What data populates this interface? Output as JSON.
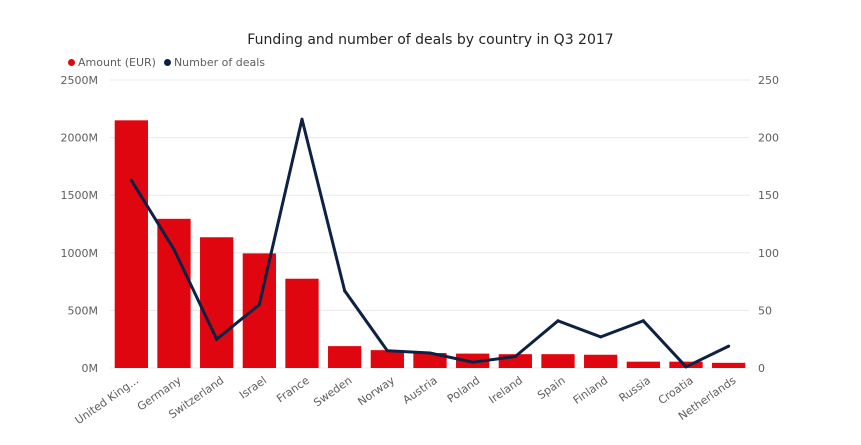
{
  "chart_data": {
    "type": "bar",
    "title": "Funding and number of deals by country in Q3 2017",
    "categories": [
      "United King...",
      "Germany",
      "Switzerland",
      "Israel",
      "France",
      "Sweden",
      "Norway",
      "Austria",
      "Poland",
      "Ireland",
      "Spain",
      "Finland",
      "Russia",
      "Croatia",
      "Netherlands"
    ],
    "series": [
      {
        "name": "Amount (EUR)",
        "type": "bar",
        "axis": "left",
        "color": "#e0060f",
        "values": [
          2150,
          1295,
          1135,
          995,
          775,
          190,
          155,
          130,
          125,
          120,
          120,
          115,
          55,
          55,
          45
        ]
      },
      {
        "name": "Number of deals",
        "type": "line",
        "axis": "right",
        "color": "#0d2145",
        "values": [
          163,
          103,
          25,
          55,
          216,
          67,
          15,
          13,
          5,
          10,
          41,
          27,
          41,
          1,
          19
        ]
      }
    ],
    "y_left": {
      "ticks": [
        0,
        500,
        1000,
        1500,
        2000,
        2500
      ],
      "tick_labels": [
        "0M",
        "500M",
        "1000M",
        "1500M",
        "2000M",
        "2500M"
      ],
      "ylim": [
        0,
        2500
      ]
    },
    "y_right": {
      "ticks": [
        0,
        50,
        100,
        150,
        200,
        250
      ],
      "tick_labels": [
        "0",
        "50",
        "100",
        "150",
        "200",
        "250"
      ],
      "ylim": [
        0,
        250
      ]
    },
    "grid": true,
    "legend_position": "top-left"
  }
}
